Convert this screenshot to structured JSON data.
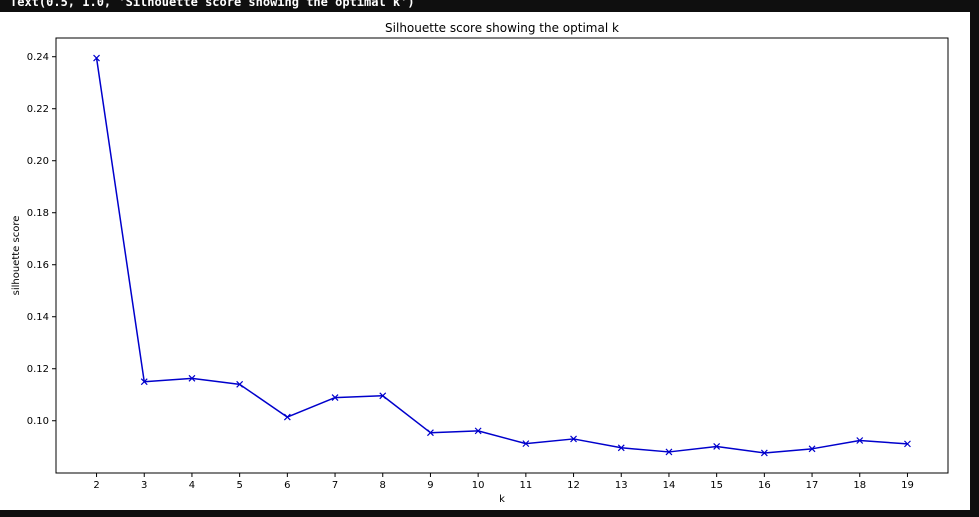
{
  "output_text": "Text(0.5, 1.0, 'Silhouette score showing the optimal k')",
  "chart_data": {
    "type": "line",
    "title": "Silhouette score showing the optimal k",
    "xlabel": "k",
    "ylabel": "silhouette score",
    "x": [
      2,
      3,
      4,
      5,
      6,
      7,
      8,
      9,
      10,
      11,
      12,
      13,
      14,
      15,
      16,
      17,
      18,
      19
    ],
    "series": [
      {
        "color": "#0000cc",
        "marker": "x",
        "values": [
          0.2395,
          0.115,
          0.1163,
          0.114,
          0.1014,
          0.1089,
          0.1096,
          0.0954,
          0.0961,
          0.0912,
          0.093,
          0.0896,
          0.088,
          0.0901,
          0.0876,
          0.0892,
          0.0924,
          0.0911
        ]
      }
    ],
    "xticks": [
      2,
      3,
      4,
      5,
      6,
      7,
      8,
      9,
      10,
      11,
      12,
      13,
      14,
      15,
      16,
      17,
      18,
      19
    ],
    "yticks": [
      0.1,
      0.12,
      0.14,
      0.16,
      0.18,
      0.2,
      0.22,
      0.24
    ],
    "ytick_labels": [
      "0.10",
      "0.12",
      "0.14",
      "0.16",
      "0.18",
      "0.20",
      "0.22",
      "0.24"
    ],
    "xlim": [
      1.15,
      19.85
    ],
    "ylim": [
      0.0799,
      0.2472
    ],
    "grid": false
  }
}
